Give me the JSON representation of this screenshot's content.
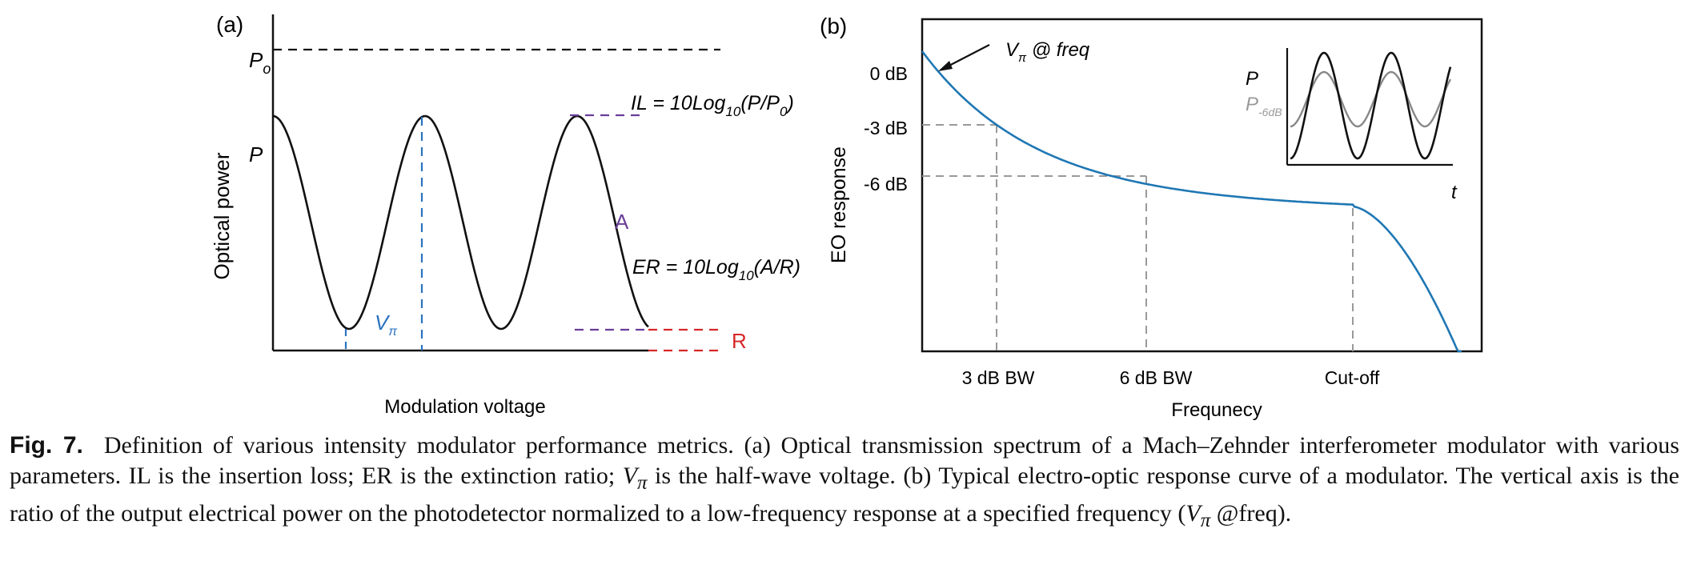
{
  "panel_a": {
    "label": "(a)",
    "ylabel": "Optical power",
    "xlabel": "Modulation voltage",
    "p0_label": "P",
    "p0_sub": "o",
    "p_label": "P",
    "il_main": "IL = 10Log",
    "il_sub1": "10",
    "il_mid": "(P/P",
    "il_sub2": "0",
    "il_end": ")",
    "a_label": "A",
    "er_main": "ER = 10Log",
    "er_sub": "10",
    "er_end": "(A/R)",
    "r_label": "R",
    "vpi_label": "V",
    "vpi_sub": "π",
    "colors": {
      "curve": "#111111",
      "vpi": "#2b73c0",
      "il": "#6a3d9a",
      "r": "#d62728"
    }
  },
  "panel_b": {
    "label": "(b)",
    "ylabel": "EO response",
    "xlabel": "Frequnecy",
    "yticks": [
      "0 dB",
      "-3 dB",
      "-6 dB"
    ],
    "xticks": [
      "3 dB BW",
      "6 dB BW",
      "Cut-off"
    ],
    "vpi_note_v": "V",
    "vpi_note_sub": "π",
    "vpi_note_rest": " @ freq",
    "inset": {
      "p_label": "P",
      "p6_label": "P",
      "p6_sub": "-6dB",
      "t_label": "t"
    },
    "colors": {
      "curve": "#1f77b4",
      "grid": "#999999",
      "inset_weak": "#888888"
    }
  },
  "chart_data": [
    {
      "type": "line",
      "title": "",
      "xlabel": "Modulation voltage",
      "ylabel": "Optical power",
      "series": [
        {
          "shape": "cosine transmission, three maxima and two minima between P and the minimum level"
        }
      ],
      "annotations": [
        "Po",
        "P",
        "IL = 10Log10(P/P0)",
        "A",
        "ER = 10Log10(A/R)",
        "R",
        "Vπ"
      ]
    },
    {
      "type": "line",
      "xlabel": "Frequnecy",
      "ylabel": "EO response",
      "yticks": [
        "0 dB",
        "-3 dB",
        "-6 dB"
      ],
      "xticks": [
        "3 dB BW",
        "6 dB BW",
        "Cut-off"
      ],
      "annotations": [
        "Vπ @ freq"
      ]
    }
  ],
  "caption": {
    "fignum": "Fig. 7.",
    "text1": "Definition of various intensity modulator performance metrics. (a) Optical transmission spectrum of a Mach–Zehnder interferometer modulator with various parameters. IL is the insertion loss; ER is the extinction ratio; ",
    "vsym": "V",
    "vsub": "π",
    "text2": " is the half-wave voltage. (b) Typical electro-optic response curve of a modulator. The vertical axis is the ratio of the output electrical power on the photodetector normalized to a low-frequency response at a specified frequency (",
    "vsym2": "V",
    "vsub2": "π",
    "text3": " @freq)."
  }
}
